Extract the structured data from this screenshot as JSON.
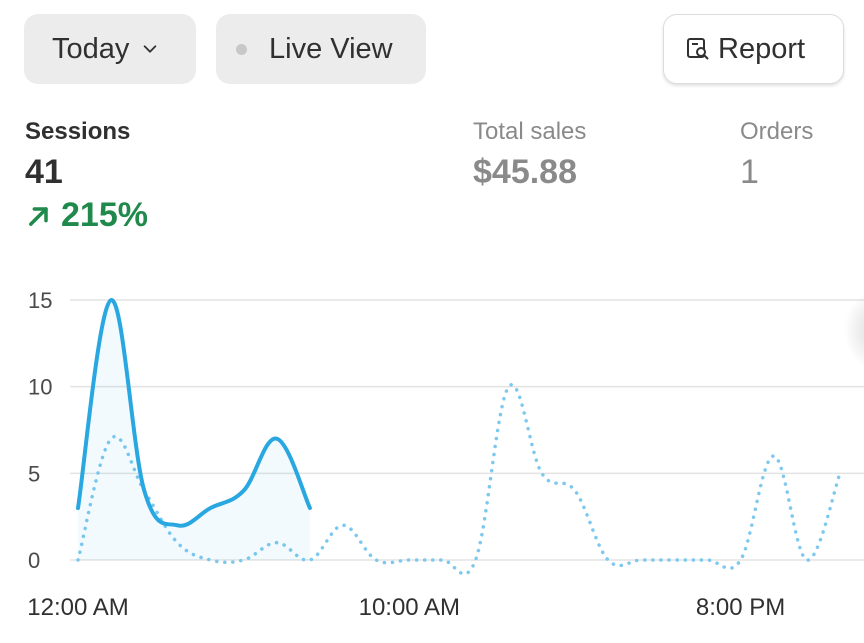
{
  "toolbar": {
    "date_label": "Today",
    "live_label": "Live View",
    "report_label": "Report"
  },
  "metrics": {
    "sessions": {
      "label": "Sessions",
      "value": "41",
      "change": "215%"
    },
    "total_sales": {
      "label": "Total sales",
      "value": "$45.88"
    },
    "orders": {
      "label": "Orders",
      "value": "1"
    }
  },
  "colors": {
    "series_current": "#29a7e1",
    "series_previous": "#7cc8ef",
    "positive_change": "#1f8a4c",
    "gridline": "#e3e3e3"
  },
  "chart_data": {
    "type": "line",
    "y_ticks": [
      "15",
      "10",
      "5",
      "0"
    ],
    "ylim": [
      0,
      15
    ],
    "x_tick_labels": [
      "12:00 AM",
      "10:00 AM",
      "8:00 PM"
    ],
    "hours_range": [
      0,
      23
    ],
    "grid": true,
    "series": [
      {
        "style": "solid",
        "x": [
          0,
          1,
          2,
          3,
          4,
          5,
          6,
          7
        ],
        "values": [
          3,
          15,
          4,
          2,
          3,
          4,
          7,
          3
        ]
      },
      {
        "style": "dotted",
        "x": [
          0,
          1,
          2,
          3,
          4,
          5,
          6,
          7,
          8,
          9,
          10,
          11,
          12,
          13,
          14,
          15,
          16,
          17,
          18,
          19,
          20,
          21,
          22,
          23
        ],
        "values": [
          0,
          7,
          4,
          1,
          0,
          0,
          1,
          0,
          2,
          0,
          0,
          0,
          0,
          10,
          5,
          4,
          0,
          0,
          0,
          0,
          0,
          6,
          0,
          5
        ]
      }
    ]
  }
}
